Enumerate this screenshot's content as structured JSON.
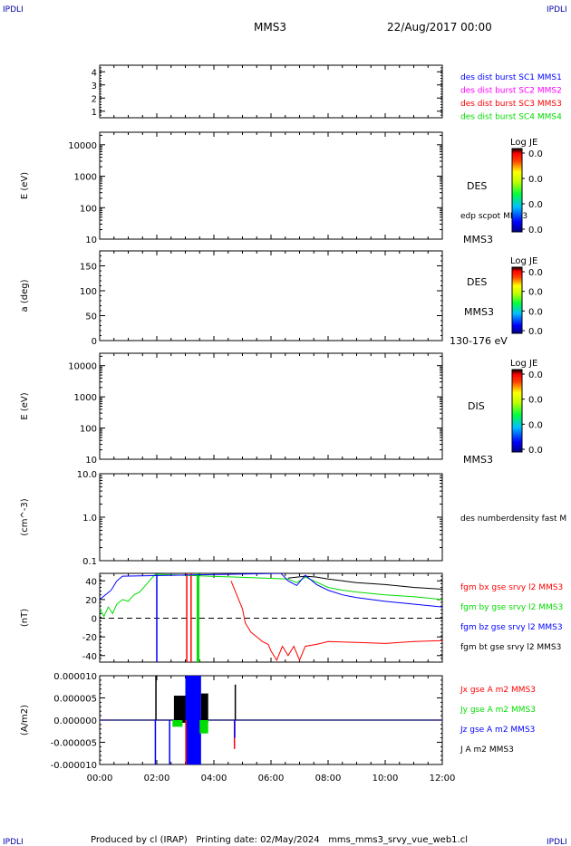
{
  "header": {
    "corner_tl": "IPDLI",
    "corner_tr": "IPDLI",
    "corner_bl": "IPDLI",
    "corner_br": "IPDLI",
    "mission": "MMS3",
    "datetime": "22/Aug/2017 00:00"
  },
  "footer": {
    "text": "Produced by cl (IRAP)   Printing date: 02/May/2024   mms_mms3_srvy_vue_web1.cl"
  },
  "colors": {
    "blue": "#0000ff",
    "magenta": "#ff00ff",
    "red": "#ff0000",
    "green": "#00dd00",
    "black": "#000000"
  },
  "chart_data": [
    {
      "type": "line",
      "panel": "sc-burst",
      "ylim": [
        0.5,
        4.5
      ],
      "yticks": [
        1,
        2,
        3,
        4
      ],
      "ytick_labels": [
        "1",
        "2",
        "3",
        "4"
      ],
      "ylabel": "",
      "legend": [
        {
          "label": "des dist burst SC1 MMS1",
          "color": "#0000ff"
        },
        {
          "label": "des dist burst SC2 MMS2",
          "color": "#ff00ff"
        },
        {
          "label": "des dist burst SC3 MMS3",
          "color": "#ff0000"
        },
        {
          "label": "des dist burst SC4 MMS4",
          "color": "#00dd00"
        }
      ]
    },
    {
      "type": "heatmap",
      "panel": "des-energy",
      "ylabel": "E (eV)",
      "scale": "log",
      "ylim": [
        10,
        25000
      ],
      "yticks": [
        10,
        100,
        1000,
        10000
      ],
      "ytick_labels": [
        "10",
        "100",
        "1000",
        "10000"
      ],
      "right_labels": [
        "DES",
        "edp scpot MMS3",
        "MMS3"
      ],
      "colorbar": {
        "title": "Log JE",
        "ticks": [
          "0.0",
          "0.0",
          "0.0",
          "0.0"
        ]
      }
    },
    {
      "type": "heatmap",
      "panel": "des-pitch",
      "ylabel": "a (deg)",
      "ylim": [
        0,
        180
      ],
      "yticks": [
        0,
        50,
        100,
        150
      ],
      "ytick_labels": [
        "0",
        "50",
        "100",
        "150"
      ],
      "right_labels": [
        "DES",
        "MMS3",
        "130-176 eV"
      ],
      "colorbar": {
        "title": "Log JE",
        "ticks": [
          "0.0",
          "0.0",
          "0.0",
          "0.0"
        ]
      }
    },
    {
      "type": "heatmap",
      "panel": "dis-energy",
      "ylabel": "E (eV)",
      "scale": "log",
      "ylim": [
        10,
        25000
      ],
      "yticks": [
        10,
        100,
        1000,
        10000
      ],
      "ytick_labels": [
        "10",
        "100",
        "1000",
        "10000"
      ],
      "right_labels": [
        "DIS",
        "MMS3"
      ],
      "colorbar": {
        "title": "Log JE",
        "ticks": [
          "0.0",
          "0.0",
          "0.0",
          "0.0"
        ]
      }
    },
    {
      "type": "line",
      "panel": "density",
      "ylabel": "(cm^-3)",
      "scale": "log",
      "ylim": [
        0.1,
        10
      ],
      "yticks": [
        0.1,
        1,
        10
      ],
      "ytick_labels": [
        "0.1",
        "1.0",
        "10.0"
      ],
      "legend": [
        {
          "label": "des numberdensity fast M",
          "color": "#000000"
        }
      ]
    },
    {
      "type": "line",
      "panel": "fgm",
      "ylabel": "(nT)",
      "ylim": [
        -47,
        48
      ],
      "yticks": [
        -40,
        -20,
        0,
        20,
        40
      ],
      "ytick_labels": [
        "-40",
        "-20",
        "0",
        "20",
        "40"
      ],
      "legend": [
        {
          "label": "fgm bx gse srvy l2 MMS3",
          "color": "#ff0000"
        },
        {
          "label": "fgm by gse srvy l2 MMS3",
          "color": "#00dd00"
        },
        {
          "label": "fgm bz gse srvy l2 MMS3",
          "color": "#0000ff"
        },
        {
          "label": "fgm bt gse srvy l2 MMS3",
          "color": "#000000"
        }
      ],
      "vlines": [
        {
          "x": 2.0,
          "color": "#0000ff"
        },
        {
          "x": 3.05,
          "color": "#ff0000"
        },
        {
          "x": 3.2,
          "color": "#ff0000"
        },
        {
          "x": 3.42,
          "color": "#00dd00"
        },
        {
          "x": 3.47,
          "color": "#00dd00"
        }
      ],
      "series": [
        {
          "name": "fgm by gse srvy l2 MMS3",
          "color": "#00dd00",
          "x": [
            0.0,
            0.15,
            0.3,
            0.45,
            0.6,
            0.8,
            1.0,
            1.2,
            1.4,
            1.6,
            1.8,
            1.95,
            6.6,
            6.9,
            7.2,
            7.5,
            8.0,
            8.5,
            9.0,
            10.0,
            11.0,
            12.0
          ],
          "y": [
            10,
            2,
            12,
            5,
            15,
            20,
            18,
            25,
            28,
            35,
            42,
            47,
            42,
            38,
            44,
            40,
            33,
            30,
            28,
            25,
            23,
            20
          ]
        },
        {
          "name": "fgm bt gse srvy l2 MMS3",
          "color": "#000000",
          "x": [
            6.6,
            7.2,
            7.6,
            8.0,
            8.5,
            9.0,
            10.0,
            11.0,
            12.0
          ],
          "y": [
            43,
            45,
            44,
            42,
            40,
            38,
            36,
            33,
            31
          ]
        },
        {
          "name": "fgm bz gse srvy l2 MMS3",
          "color": "#0000ff",
          "x": [
            0.0,
            0.2,
            0.4,
            0.6,
            0.8,
            6.35,
            6.6,
            6.9,
            7.2,
            7.6,
            8.0,
            8.5,
            9.0,
            10.0,
            11.0,
            12.0
          ],
          "y": [
            20,
            25,
            30,
            40,
            45,
            48,
            40,
            35,
            46,
            36,
            30,
            25,
            22,
            18,
            15,
            12
          ]
        },
        {
          "name": "fgm bx gse srvy l2 MMS3",
          "color": "#ff0000",
          "x": [
            4.6,
            4.8,
            5.0,
            5.1,
            5.3,
            5.5,
            5.7,
            5.9,
            6.0,
            6.2,
            6.4,
            6.6,
            6.8,
            7.0,
            7.2,
            7.6,
            8.0,
            9.0,
            10.0,
            11.0,
            12.0
          ],
          "y": [
            40,
            25,
            10,
            -5,
            -15,
            -20,
            -25,
            -28,
            -35,
            -45,
            -30,
            -40,
            -30,
            -45,
            -30,
            -28,
            -25,
            -26,
            -27,
            -25,
            -24
          ]
        }
      ],
      "zero_line": true
    },
    {
      "type": "line",
      "panel": "current",
      "ylabel": "(A/m2)",
      "ylim": [
        -1e-05,
        1e-05
      ],
      "yticks": [
        -1e-05,
        -5e-06,
        0,
        5e-06,
        1e-05
      ],
      "ytick_labels": [
        "-0.000010",
        "-0.000005",
        "0.000000",
        "0.000005",
        "0.000010"
      ],
      "legend": [
        {
          "label": "Jx gse A m2 MMS3",
          "color": "#ff0000"
        },
        {
          "label": "Jy gse A m2 MMS3",
          "color": "#00dd00"
        },
        {
          "label": "Jz gse A m2 MMS3",
          "color": "#0000ff"
        },
        {
          "label": "J A m2 MMS3",
          "color": "#000000"
        }
      ],
      "bursts": [
        {
          "x0": 3.0,
          "x1": 3.55,
          "color": "#0000ff",
          "y0": -1e-05,
          "y1": 1e-05
        },
        {
          "x0": 2.6,
          "x1": 3.0,
          "color": "#000000",
          "y0": -6e-07,
          "y1": 5.5e-06
        },
        {
          "x0": 3.55,
          "x1": 3.8,
          "color": "#000000",
          "y0": -5e-07,
          "y1": 6e-06
        },
        {
          "x0": 3.5,
          "x1": 3.8,
          "color": "#00dd00",
          "y0": -3e-06,
          "y1": 0
        },
        {
          "x0": 2.55,
          "x1": 2.9,
          "color": "#00dd00",
          "y0": -1.5e-06,
          "y1": 0
        }
      ],
      "spikes": [
        {
          "x": 1.95,
          "color": "#0000ff",
          "y": -1e-05
        },
        {
          "x": 1.97,
          "color": "#000000",
          "y": 1e-05
        },
        {
          "x": 2.45,
          "color": "#0000ff",
          "y": -1e-05
        },
        {
          "x": 3.02,
          "color": "#ff0000",
          "y": -1e-05
        },
        {
          "x": 4.72,
          "color": "#ff0000",
          "y": -6.5e-06
        },
        {
          "x": 4.75,
          "color": "#000000",
          "y": 8e-06
        },
        {
          "x": 4.73,
          "color": "#0000ff",
          "y": -4e-06
        }
      ]
    }
  ],
  "xaxis": {
    "xlim": [
      0,
      12
    ],
    "ticks": [
      0,
      2,
      4,
      6,
      8,
      10,
      12
    ],
    "tick_labels": [
      "00:00",
      "02:00",
      "04:00",
      "06:00",
      "08:00",
      "10:00",
      "12:00"
    ]
  }
}
